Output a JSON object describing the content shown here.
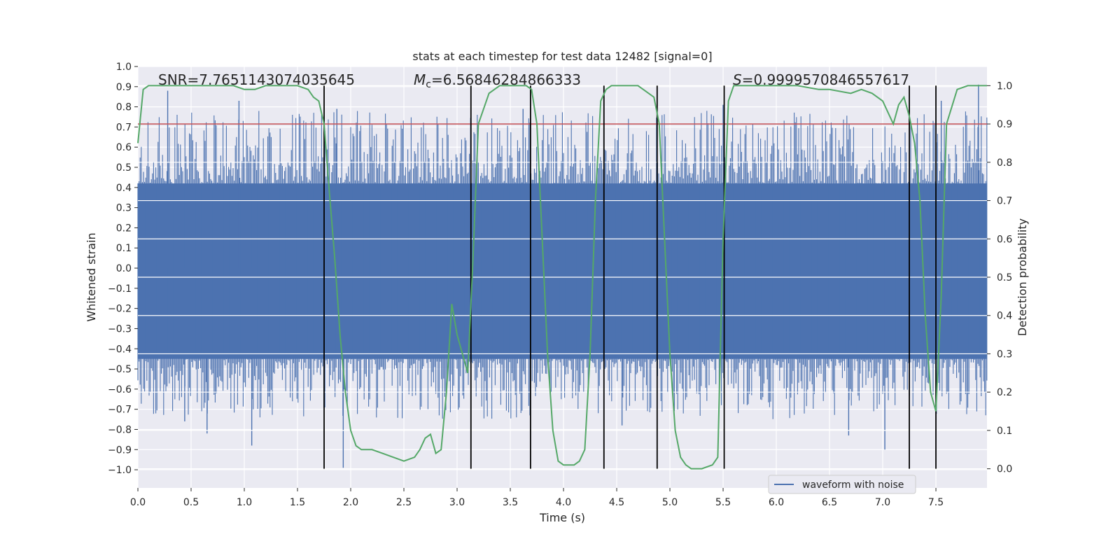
{
  "chart_data": {
    "type": "line",
    "title": "stats at each timestep for test data 12482 [signal=0]",
    "xlabel": "Time (s)",
    "ylabel": "Whitened strain",
    "ylabel_right": "Detection probability",
    "xlim": [
      0.0,
      7.98
    ],
    "ylim": [
      -1.09,
      1.0
    ],
    "ylim_right": [
      -0.05,
      1.05
    ],
    "xticks": [
      "0.0",
      "0.5",
      "1.0",
      "1.5",
      "2.0",
      "2.5",
      "3.0",
      "3.5",
      "4.0",
      "4.5",
      "5.0",
      "5.5",
      "6.0",
      "6.5",
      "7.0",
      "7.5"
    ],
    "yticks": [
      "1.0",
      "0.9",
      "0.8",
      "0.7",
      "0.6",
      "0.5",
      "0.4",
      "0.3",
      "0.2",
      "0.1",
      "0.0",
      "−0.1",
      "−0.2",
      "−0.3",
      "−0.4",
      "−0.5",
      "−0.6",
      "−0.7",
      "−0.8",
      "−0.9",
      "−1.0"
    ],
    "yticks_right": [
      "1.0",
      "0.9",
      "0.8",
      "0.7",
      "0.6",
      "0.5",
      "0.4",
      "0.3",
      "0.2",
      "0.1",
      "0.0"
    ],
    "annotations": {
      "snr": "SNR=7.7651143074035645",
      "mc_symbol": "M",
      "mc_sub": "c",
      "mc_value": "=6.56846284866333",
      "s_symbol": "S",
      "s_value": "=0.9999570846557617"
    },
    "legend": {
      "label": "waveform with noise",
      "position": "lower-right"
    },
    "threshold": 0.9,
    "waveform": {
      "name": "waveform with noise",
      "band_core": [
        -0.45,
        0.42
      ],
      "peaks_high": [
        [
          0.28,
          0.88
        ],
        [
          0.95,
          0.83
        ],
        [
          1.87,
          0.79
        ],
        [
          3.62,
          0.79
        ],
        [
          7.9,
          0.91
        ],
        [
          7.55,
          0.83
        ],
        [
          5.5,
          0.81
        ]
      ],
      "peaks_low": [
        [
          0.65,
          -0.82
        ],
        [
          1.07,
          -0.88
        ],
        [
          1.93,
          -0.99
        ],
        [
          4.55,
          -0.78
        ],
        [
          6.68,
          -0.83
        ],
        [
          7.02,
          -0.9
        ],
        [
          0.44,
          -0.76
        ]
      ]
    },
    "detection_probability": {
      "x": [
        0.0,
        0.05,
        0.1,
        0.2,
        0.3,
        0.4,
        0.5,
        0.6,
        0.7,
        0.8,
        0.9,
        1.0,
        1.1,
        1.2,
        1.3,
        1.4,
        1.5,
        1.6,
        1.65,
        1.7,
        1.75,
        1.8,
        1.85,
        1.9,
        1.95,
        2.0,
        2.05,
        2.1,
        2.15,
        2.2,
        2.3,
        2.4,
        2.5,
        2.6,
        2.65,
        2.7,
        2.75,
        2.8,
        2.85,
        2.9,
        2.95,
        3.0,
        3.05,
        3.1,
        3.15,
        3.2,
        3.3,
        3.4,
        3.5,
        3.6,
        3.65,
        3.7,
        3.75,
        3.8,
        3.85,
        3.9,
        3.95,
        4.0,
        4.05,
        4.1,
        4.15,
        4.2,
        4.25,
        4.3,
        4.35,
        4.4,
        4.45,
        4.5,
        4.6,
        4.7,
        4.8,
        4.85,
        4.9,
        4.95,
        5.0,
        5.05,
        5.1,
        5.15,
        5.2,
        5.3,
        5.4,
        5.45,
        5.5,
        5.55,
        5.6,
        5.7,
        5.8,
        5.9,
        6.0,
        6.2,
        6.4,
        6.5,
        6.7,
        6.8,
        6.9,
        7.0,
        7.05,
        7.1,
        7.15,
        7.2,
        7.25,
        7.3,
        7.35,
        7.4,
        7.45,
        7.5,
        7.55,
        7.6,
        7.7,
        7.8,
        7.9,
        7.98
      ],
      "y": [
        0.85,
        0.99,
        1.0,
        1.0,
        1.0,
        1.0,
        1.0,
        1.0,
        1.0,
        1.0,
        1.0,
        0.99,
        0.99,
        1.0,
        1.0,
        1.0,
        1.0,
        0.99,
        0.97,
        0.96,
        0.9,
        0.72,
        0.55,
        0.35,
        0.2,
        0.1,
        0.06,
        0.05,
        0.05,
        0.05,
        0.04,
        0.03,
        0.02,
        0.03,
        0.05,
        0.08,
        0.09,
        0.04,
        0.05,
        0.2,
        0.43,
        0.35,
        0.3,
        0.25,
        0.55,
        0.9,
        0.98,
        1.0,
        1.0,
        1.0,
        1.0,
        0.99,
        0.9,
        0.6,
        0.3,
        0.1,
        0.02,
        0.01,
        0.01,
        0.01,
        0.02,
        0.05,
        0.3,
        0.7,
        0.96,
        0.99,
        1.0,
        1.0,
        1.0,
        1.0,
        0.98,
        0.97,
        0.9,
        0.6,
        0.3,
        0.1,
        0.03,
        0.01,
        0.0,
        0.0,
        0.01,
        0.03,
        0.6,
        0.96,
        1.0,
        1.0,
        1.0,
        1.0,
        1.0,
        1.0,
        0.99,
        0.99,
        0.98,
        0.99,
        0.98,
        0.96,
        0.93,
        0.9,
        0.95,
        0.97,
        0.92,
        0.85,
        0.7,
        0.4,
        0.2,
        0.15,
        0.45,
        0.9,
        0.99,
        1.0,
        1.0,
        1.0
      ]
    },
    "vertical_lines": [
      1.75,
      3.13,
      3.69,
      4.38,
      4.88,
      5.51,
      7.25,
      7.5
    ]
  },
  "colors": {
    "plot_bg": "#eaeaf2",
    "grid": "#ffffff",
    "waveform": "#4c72b0",
    "probability": "#55a868",
    "threshold": "#c44e52",
    "vline": "#000000"
  }
}
